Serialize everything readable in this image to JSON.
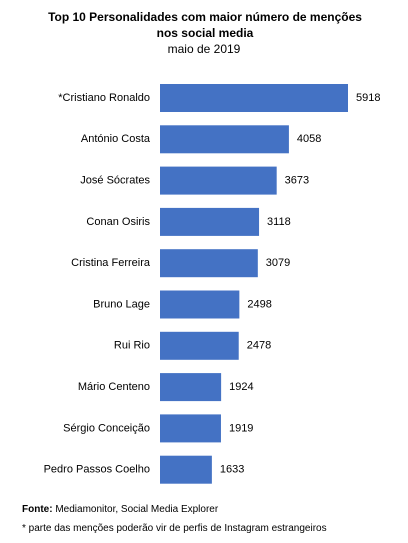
{
  "chart_data": {
    "type": "barh",
    "title": "Top 10 Personalidades com maior número de menções nos social media",
    "subtitle": "maio de 2019",
    "categories": [
      "*Cristiano Ronaldo",
      "António Costa",
      "José Sócrates",
      "Conan Osiris",
      "Cristina Ferreira",
      "Bruno Lage",
      "Rui Rio",
      "Mário Centeno",
      "Sérgio Conceição",
      "Pedro Passos Coelho"
    ],
    "values": [
      5918,
      4058,
      3673,
      3118,
      3079,
      2498,
      2478,
      1924,
      1919,
      1633
    ],
    "color": "#4472c4"
  },
  "source": {
    "label": "Fonte:",
    "text": "Mediamonitor, Social Media Explorer"
  },
  "footnote": "* parte das menções poderão vir de perfis de Instagram estrangeiros"
}
